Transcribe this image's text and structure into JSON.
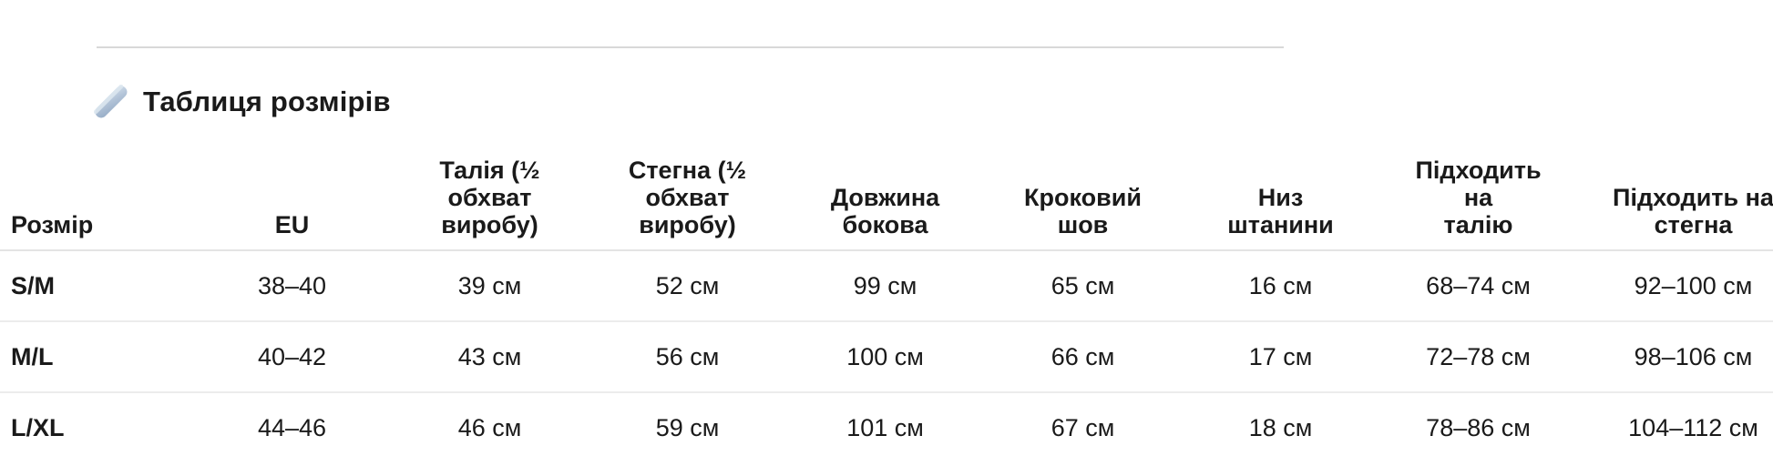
{
  "page": {
    "title": "Таблиця розмірів",
    "title_icon": "straight-ruler",
    "colors": {
      "background": "#ffffff",
      "text": "#1a1a1a",
      "divider": "#d8d8d8",
      "header_border": "#e4e4e4",
      "row_border": "#ececec",
      "ruler_light": "#ccd9e7",
      "ruler_dark": "#9eb3cb"
    }
  },
  "size_table": {
    "columns": [
      "Розмір",
      "EU",
      "Талія (½\nобхват\nвиробу)",
      "Стегна (½\nобхват\nвиробу)",
      "Довжина\nбокова",
      "Кроковий\nшов",
      "Низ штанини",
      "Підходить на\nталію",
      "Підходить на\nстегна"
    ],
    "rows": [
      [
        "S/M",
        "38–40",
        "39 см",
        "52 см",
        "99 см",
        "65 см",
        "16 см",
        "68–74 см",
        "92–100 см"
      ],
      [
        "M/L",
        "40–42",
        "43 см",
        "56 см",
        "100 см",
        "66 см",
        "17 см",
        "72–78 см",
        "98–106 см"
      ],
      [
        "L/XL",
        "44–46",
        "46 см",
        "59 см",
        "101 см",
        "67 см",
        "18 см",
        "78–86 см",
        "104–112 см"
      ]
    ]
  }
}
